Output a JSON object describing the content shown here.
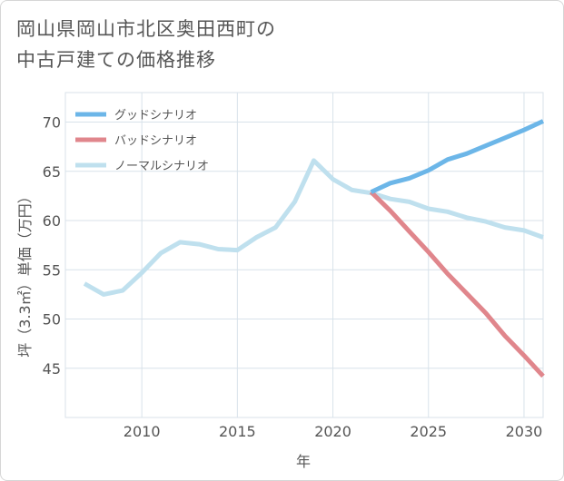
{
  "title": {
    "line1": "岡山県岡山市北区奥田西町の",
    "line2": "中古戸建ての価格推移"
  },
  "chart_data": {
    "type": "line",
    "xlabel": "年",
    "ylabel": "坪（3.3㎡）単価（万円）",
    "xlim": [
      2006,
      2031
    ],
    "ylim": [
      40,
      73
    ],
    "x_ticks": [
      2010,
      2015,
      2020,
      2025,
      2030
    ],
    "y_ticks": [
      45,
      50,
      55,
      60,
      65,
      70
    ],
    "grid": true,
    "legend_position": "top-left",
    "series": [
      {
        "name": "グッドシナリオ",
        "color": "#6cb6e8",
        "points": [
          [
            2022,
            62.9
          ],
          [
            2023,
            63.8
          ],
          [
            2024,
            64.3
          ],
          [
            2025,
            65.1
          ],
          [
            2026,
            66.2
          ],
          [
            2027,
            66.8
          ],
          [
            2028,
            67.6
          ],
          [
            2029,
            68.4
          ],
          [
            2030,
            69.2
          ],
          [
            2031,
            70.1
          ]
        ]
      },
      {
        "name": "バッドシナリオ",
        "color": "#e0868c",
        "points": [
          [
            2022,
            62.9
          ],
          [
            2023,
            61.0
          ],
          [
            2024,
            58.9
          ],
          [
            2025,
            56.8
          ],
          [
            2026,
            54.6
          ],
          [
            2027,
            52.6
          ],
          [
            2028,
            50.6
          ],
          [
            2029,
            48.3
          ],
          [
            2030,
            46.3
          ],
          [
            2031,
            44.2
          ]
        ]
      },
      {
        "name": "ノーマルシナリオ",
        "color": "#bfe0ee",
        "points": [
          [
            2007,
            53.6
          ],
          [
            2008,
            52.5
          ],
          [
            2009,
            52.9
          ],
          [
            2010,
            54.7
          ],
          [
            2011,
            56.7
          ],
          [
            2012,
            57.8
          ],
          [
            2013,
            57.6
          ],
          [
            2014,
            57.1
          ],
          [
            2015,
            57.0
          ],
          [
            2016,
            58.3
          ],
          [
            2017,
            59.3
          ],
          [
            2018,
            61.9
          ],
          [
            2019,
            66.1
          ],
          [
            2020,
            64.2
          ],
          [
            2021,
            63.1
          ],
          [
            2022,
            62.8
          ],
          [
            2023,
            62.2
          ],
          [
            2024,
            61.9
          ],
          [
            2025,
            61.2
          ],
          [
            2026,
            60.9
          ],
          [
            2027,
            60.3
          ],
          [
            2028,
            59.9
          ],
          [
            2029,
            59.3
          ],
          [
            2030,
            59.0
          ],
          [
            2031,
            58.3
          ]
        ]
      }
    ]
  }
}
